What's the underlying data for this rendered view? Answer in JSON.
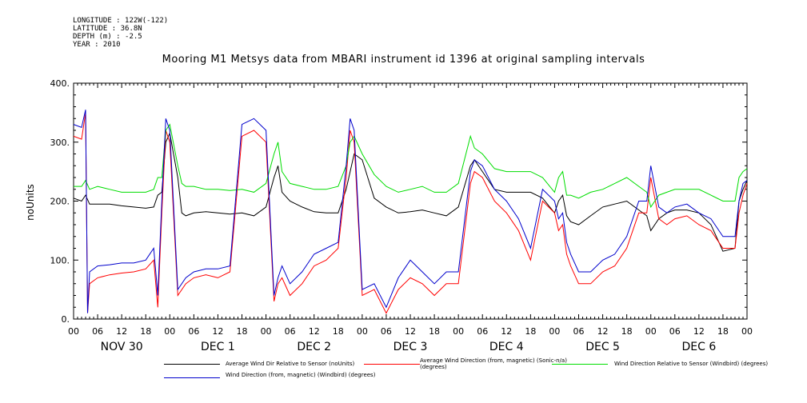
{
  "meta": {
    "longitude": "LONGITUDE : 122W(-122)",
    "latitude": "LATITUDE : 36.8N",
    "depth": "DEPTH (m) : -2.5",
    "year": "YEAR : 2010"
  },
  "chart_data": {
    "type": "line",
    "title": "Mooring M1 Metsys data from MBARI instrument id 1396 at original sampling intervals",
    "ylabel": "noUnits",
    "xlabel": "",
    "ylim": [
      0,
      400
    ],
    "yticks": [
      0,
      100,
      200,
      300,
      400
    ],
    "ytick_labels": [
      "0.",
      "100.",
      "200.",
      "300.",
      "400."
    ],
    "xlim_hours": [
      0,
      168
    ],
    "xtick_labels": [
      "00",
      "06",
      "12",
      "18",
      "00",
      "06",
      "12",
      "18",
      "00",
      "06",
      "12",
      "18",
      "00",
      "06",
      "12",
      "18",
      "00",
      "06",
      "12",
      "18",
      "00",
      "06",
      "12",
      "18",
      "00",
      "06",
      "12",
      "18",
      "00"
    ],
    "day_labels": [
      "NOV 30",
      "DEC 1",
      "DEC 2",
      "DEC 3",
      "DEC 4",
      "DEC 5",
      "DEC 6"
    ],
    "grid": false,
    "legend_position": "bottom",
    "series": [
      {
        "name": "Average Wind Dir Relative to Sensor (noUnits)",
        "color": "#000000",
        "x": [
          0,
          2,
          3,
          4,
          6,
          9,
          12,
          15,
          18,
          20,
          21,
          22,
          23,
          24,
          26,
          27,
          28,
          30,
          33,
          36,
          39,
          42,
          45,
          48,
          50,
          51,
          52,
          54,
          57,
          60,
          63,
          66,
          68,
          69,
          70,
          72,
          75,
          78,
          81,
          84,
          87,
          90,
          93,
          96,
          99,
          100,
          102,
          105,
          108,
          111,
          114,
          117,
          120,
          121,
          122,
          123,
          124,
          126,
          129,
          132,
          135,
          138,
          141,
          143,
          144,
          146,
          148,
          150,
          153,
          156,
          159,
          162,
          165,
          166,
          167,
          168
        ],
        "y": [
          205,
          200,
          210,
          195,
          195,
          195,
          192,
          190,
          188,
          190,
          210,
          215,
          300,
          315,
          240,
          180,
          175,
          180,
          182,
          180,
          178,
          180,
          175,
          190,
          240,
          260,
          215,
          200,
          190,
          182,
          180,
          180,
          220,
          250,
          280,
          270,
          205,
          190,
          180,
          182,
          185,
          180,
          175,
          190,
          260,
          270,
          250,
          220,
          215,
          215,
          215,
          205,
          180,
          200,
          210,
          175,
          165,
          160,
          175,
          190,
          195,
          200,
          185,
          175,
          150,
          170,
          180,
          185,
          185,
          180,
          160,
          115,
          120,
          200,
          220,
          235
        ]
      },
      {
        "name": "Average Wind Direction (from, magnetic) (Sonic-n/a) (degrees)",
        "color": "#ff0000",
        "x": [
          0,
          2,
          3,
          3.5,
          4,
          6,
          9,
          12,
          15,
          18,
          20,
          21,
          22,
          23,
          24,
          26,
          28,
          30,
          33,
          36,
          39,
          42,
          45,
          48,
          50,
          51,
          52,
          54,
          57,
          60,
          63,
          66,
          68,
          69,
          70,
          72,
          75,
          78,
          81,
          84,
          87,
          90,
          93,
          96,
          99,
          100,
          102,
          105,
          108,
          111,
          114,
          117,
          120,
          121,
          122,
          123,
          124,
          126,
          129,
          132,
          135,
          138,
          141,
          143,
          144,
          146,
          148,
          150,
          153,
          156,
          159,
          162,
          165,
          166,
          167,
          168
        ],
        "y": [
          310,
          305,
          350,
          10,
          60,
          70,
          75,
          78,
          80,
          85,
          100,
          20,
          180,
          320,
          300,
          40,
          60,
          70,
          75,
          70,
          80,
          310,
          320,
          300,
          30,
          60,
          70,
          40,
          60,
          90,
          100,
          120,
          240,
          320,
          300,
          40,
          50,
          10,
          50,
          70,
          60,
          40,
          60,
          60,
          230,
          250,
          240,
          200,
          180,
          150,
          100,
          200,
          180,
          150,
          160,
          110,
          90,
          60,
          60,
          80,
          90,
          120,
          180,
          180,
          240,
          170,
          160,
          170,
          175,
          160,
          150,
          120,
          120,
          180,
          210,
          230
        ]
      },
      {
        "name": "Wind Direction Relative to Sensor (Windbird) (degrees)",
        "color": "#00dd00",
        "x": [
          0,
          2,
          3,
          4,
          6,
          9,
          12,
          15,
          18,
          20,
          21,
          22,
          23,
          24,
          26,
          27,
          28,
          30,
          33,
          36,
          39,
          42,
          45,
          48,
          50,
          51,
          52,
          54,
          57,
          60,
          63,
          66,
          68,
          69,
          70,
          72,
          75,
          78,
          81,
          84,
          87,
          90,
          93,
          96,
          99,
          100,
          102,
          105,
          108,
          111,
          114,
          117,
          120,
          121,
          122,
          123,
          124,
          126,
          129,
          132,
          135,
          138,
          141,
          143,
          144,
          146,
          148,
          150,
          153,
          156,
          159,
          162,
          165,
          166,
          167,
          168
        ],
        "y": [
          225,
          225,
          235,
          220,
          225,
          220,
          215,
          215,
          215,
          220,
          240,
          240,
          320,
          330,
          260,
          230,
          225,
          225,
          220,
          220,
          218,
          220,
          215,
          230,
          280,
          300,
          250,
          230,
          225,
          220,
          220,
          225,
          260,
          300,
          310,
          280,
          245,
          225,
          215,
          220,
          225,
          215,
          215,
          230,
          310,
          290,
          280,
          255,
          250,
          250,
          250,
          240,
          215,
          240,
          250,
          210,
          210,
          205,
          215,
          220,
          230,
          240,
          225,
          215,
          190,
          210,
          215,
          220,
          220,
          220,
          210,
          200,
          200,
          240,
          250,
          255
        ]
      },
      {
        "name": "Wind Direction (from, magnetic) (Windbird) (degrees)",
        "color": "#0000cc",
        "x": [
          0,
          2,
          3,
          3.5,
          4,
          6,
          9,
          12,
          15,
          18,
          20,
          21,
          22,
          23,
          24,
          26,
          28,
          30,
          33,
          36,
          39,
          42,
          45,
          48,
          50,
          51,
          52,
          54,
          57,
          60,
          63,
          66,
          68,
          69,
          70,
          72,
          75,
          78,
          81,
          84,
          87,
          90,
          93,
          96,
          99,
          100,
          102,
          105,
          108,
          111,
          114,
          117,
          120,
          121,
          122,
          123,
          124,
          126,
          129,
          132,
          135,
          138,
          141,
          143,
          144,
          146,
          148,
          150,
          153,
          156,
          159,
          162,
          165,
          166,
          167,
          168
        ],
        "y": [
          330,
          325,
          355,
          10,
          80,
          90,
          92,
          95,
          95,
          100,
          120,
          40,
          200,
          340,
          320,
          50,
          70,
          80,
          85,
          85,
          90,
          330,
          340,
          320,
          40,
          70,
          90,
          60,
          80,
          110,
          120,
          130,
          260,
          340,
          320,
          50,
          60,
          20,
          70,
          100,
          80,
          60,
          80,
          80,
          250,
          270,
          260,
          220,
          200,
          170,
          120,
          220,
          200,
          170,
          180,
          130,
          110,
          80,
          80,
          100,
          110,
          140,
          200,
          200,
          260,
          190,
          180,
          190,
          195,
          180,
          170,
          140,
          140,
          200,
          230,
          235
        ]
      }
    ]
  }
}
